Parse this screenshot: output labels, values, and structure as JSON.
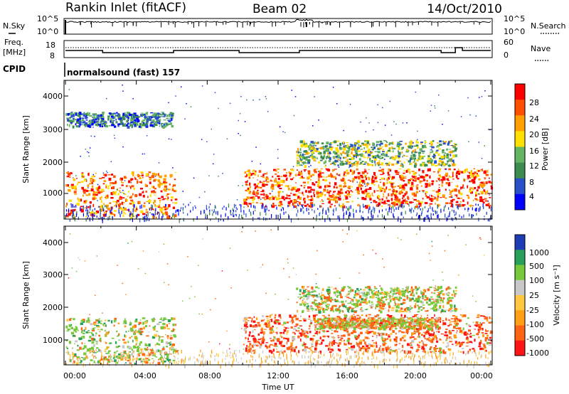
{
  "header": {
    "station": "Rankin Inlet (fitACF)",
    "beam": "Beam 02",
    "date": "14/Oct/2010"
  },
  "top_panels": {
    "nsky": {
      "label": "N.Sky",
      "ticks": [
        "10^5",
        "10^0"
      ]
    },
    "nsearch": {
      "label": "N.Search",
      "ticks": [
        "10^5",
        "10^0"
      ]
    },
    "freq": {
      "label_top": "Freq.",
      "label_unit": "[MHz]",
      "ticks": [
        "18",
        "8"
      ]
    },
    "nave": {
      "label": "Nave",
      "ticks": [
        "60",
        "0"
      ]
    },
    "cpid": {
      "label": "CPID",
      "text": "normalsound (fast) 157"
    }
  },
  "x_axis": {
    "label": "Time UT",
    "ticks": [
      "00:00",
      "04:00",
      "08:00",
      "12:00",
      "16:00",
      "20:00",
      "00:00"
    ]
  },
  "power_panel": {
    "ylabel": "Slant Range [km]",
    "yticks": [
      "4000",
      "3000",
      "2000",
      "1000"
    ],
    "colorbar_label": "Power [dB]",
    "colorbar_ticks": [
      "28",
      "24",
      "20",
      "16",
      "12",
      "8",
      "4"
    ]
  },
  "velocity_panel": {
    "ylabel": "Slant Range [km]",
    "yticks": [
      "4000",
      "3000",
      "2000",
      "1000"
    ],
    "colorbar_label": "Velocity [m s⁻¹]",
    "colorbar_ticks": [
      "1000",
      "500",
      "100",
      "25",
      "-25",
      "-100",
      "-500",
      "-1000"
    ]
  },
  "chart_data": [
    {
      "type": "heatmap",
      "title": "Power",
      "xlabel": "Time UT",
      "ylabel": "Slant Range [km]",
      "xlim": [
        0,
        24
      ],
      "ylim": [
        180,
        4600
      ],
      "color_scale": {
        "label": "Power [dB]",
        "range": [
          0,
          32
        ],
        "colors": [
          "#0000ff",
          "#2850c8",
          "#3c8c50",
          "#64b464",
          "#ffe000",
          "#ffa000",
          "#ff5000",
          "#ff0000"
        ]
      },
      "echo_regions": [
        {
          "t": [
            0.0,
            6.2
          ],
          "range": [
            250,
            1700
          ],
          "power_db": 24
        },
        {
          "t": [
            0.0,
            6.0
          ],
          "range": [
            3150,
            3600
          ],
          "power_db": 8
        },
        {
          "t": [
            10.0,
            24.0
          ],
          "range": [
            600,
            1800
          ],
          "power_db": 26
        },
        {
          "t": [
            13.0,
            22.0
          ],
          "range": [
            1900,
            2700
          ],
          "power_db": 14
        }
      ]
    },
    {
      "type": "heatmap",
      "title": "Velocity",
      "xlabel": "Time UT",
      "ylabel": "Slant Range [km]",
      "xlim": [
        0,
        24
      ],
      "ylim": [
        180,
        4600
      ],
      "color_scale": {
        "label": "Velocity [m s⁻¹]",
        "levels": [
          1000,
          500,
          100,
          25,
          -25,
          -100,
          -500,
          -1000
        ],
        "colors": [
          "#1e3cb4",
          "#28a05a",
          "#78c83c",
          "#c8c8c8",
          "#ffc840",
          "#ffa014",
          "#ff6414",
          "#ff1414"
        ]
      },
      "echo_regions": [
        {
          "t": [
            0.0,
            6.2
          ],
          "range": [
            250,
            1700
          ],
          "velocity": 200
        },
        {
          "t": [
            10.0,
            24.0
          ],
          "range": [
            600,
            1800
          ],
          "velocity": -300
        },
        {
          "t": [
            14.0,
            21.0
          ],
          "range": [
            1350,
            1700
          ],
          "velocity": 0
        },
        {
          "t": [
            13.0,
            22.0
          ],
          "range": [
            1900,
            2700
          ],
          "velocity": 150
        }
      ]
    }
  ]
}
